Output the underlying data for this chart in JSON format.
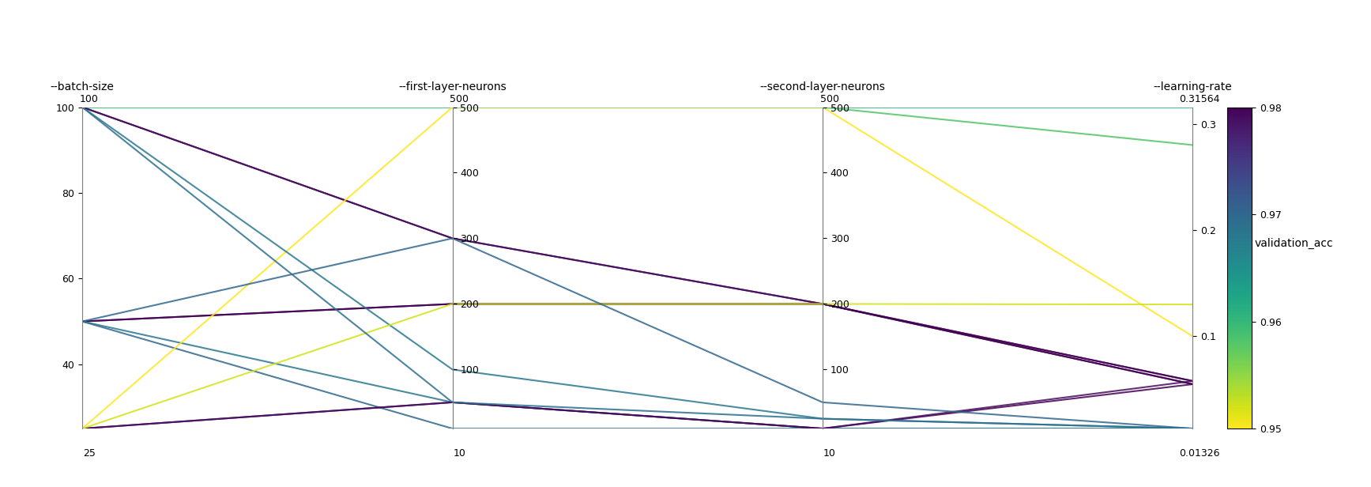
{
  "axes_names": [
    "--batch-size",
    "--first-layer-neurons",
    "--second-layer-neurons",
    "--learning-rate"
  ],
  "axes_min": [
    25,
    10,
    10,
    0.01326
  ],
  "axes_max": [
    100,
    500,
    500,
    0.31564
  ],
  "axes_top_labels": [
    "100",
    "500",
    "500",
    "0.31564"
  ],
  "axes_bottom_labels": [
    "25",
    "10",
    "10",
    "0.01326"
  ],
  "ytick_sets": [
    [
      40,
      60,
      80,
      100
    ],
    [
      100,
      200,
      300,
      400,
      500
    ],
    [
      100,
      200,
      300,
      400,
      500
    ],
    [
      0.1,
      0.2,
      0.3
    ]
  ],
  "runs": [
    {
      "vals": [
        100,
        500,
        500,
        0.31564
      ],
      "val_acc": 0.961
    },
    {
      "vals": [
        100,
        500,
        500,
        0.28
      ],
      "val_acc": 0.958
    },
    {
      "vals": [
        100,
        300,
        200,
        0.055
      ],
      "val_acc": 0.98
    },
    {
      "vals": [
        100,
        300,
        200,
        0.058
      ],
      "val_acc": 0.979
    },
    {
      "vals": [
        50,
        200,
        200,
        0.055
      ],
      "val_acc": 0.98
    },
    {
      "vals": [
        50,
        200,
        200,
        0.058
      ],
      "val_acc": 0.981
    },
    {
      "vals": [
        50,
        10,
        10,
        0.01326
      ],
      "val_acc": 0.97
    },
    {
      "vals": [
        50,
        50,
        10,
        0.01326
      ],
      "val_acc": 0.968
    },
    {
      "vals": [
        25,
        50,
        10,
        0.055
      ],
      "val_acc": 0.98
    },
    {
      "vals": [
        25,
        50,
        10,
        0.058
      ],
      "val_acc": 0.979
    },
    {
      "vals": [
        25,
        500,
        500,
        0.1
      ],
      "val_acc": 0.95
    },
    {
      "vals": [
        100,
        100,
        25,
        0.01326
      ],
      "val_acc": 0.968
    },
    {
      "vals": [
        25,
        200,
        200,
        0.13
      ],
      "val_acc": 0.952
    },
    {
      "vals": [
        50,
        300,
        50,
        0.01326
      ],
      "val_acc": 0.97
    },
    {
      "vals": [
        100,
        50,
        25,
        0.01326
      ],
      "val_acc": 0.969
    }
  ],
  "colormap": "viridis_r",
  "vmin": 0.95,
  "vmax": 0.98,
  "colorbar_label": "validation_acc",
  "colorbar_ticks": [
    0.95,
    0.96,
    0.97,
    0.98
  ],
  "colorbar_ticklabels": [
    "0.95",
    "0.96",
    "0.97",
    "0.98"
  ],
  "background_color": "#ffffff",
  "line_alpha": 0.85,
  "line_width": 1.5,
  "figsize": [
    17.35,
    6.16
  ],
  "dpi": 100
}
